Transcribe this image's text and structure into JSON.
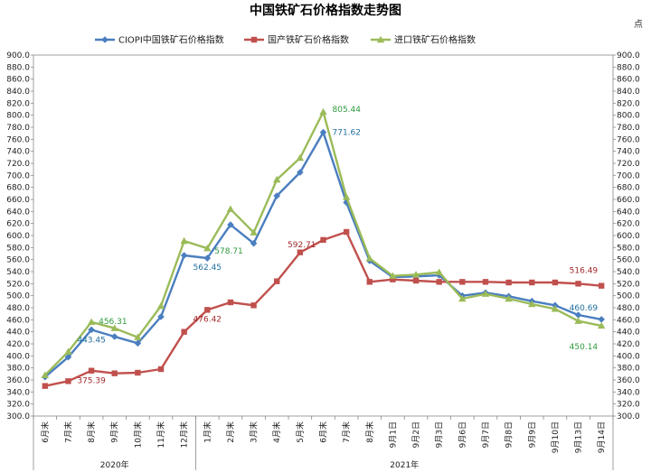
{
  "chart_data": {
    "type": "line",
    "title": "中国铁矿石价格指数走势图",
    "unit": "点",
    "ylim": [
      300,
      900
    ],
    "ystep": 20,
    "categories": [
      "6月末",
      "7月末",
      "8月末",
      "9月末",
      "10月末",
      "11月末",
      "12月末",
      "1月末",
      "2月末",
      "3月末",
      "4月末",
      "5月末",
      "6月末",
      "7月末",
      "8月末",
      "9月1日",
      "9月2日",
      "9月3日",
      "9月6日",
      "9月7日",
      "9月8日",
      "9月9日",
      "9月10日",
      "9月13日",
      "9月14日"
    ],
    "groups": [
      {
        "label": "2020年",
        "start": 0,
        "end": 6
      },
      {
        "label": "2021年",
        "start": 7,
        "end": 24
      }
    ],
    "legend": "top-center",
    "series": [
      {
        "name": "CIOPI中国铁矿石价格指数",
        "color": "#4a7ebf",
        "marker": "diamond",
        "values": [
          365,
          398,
          443.45,
          432,
          421,
          465,
          567,
          562.45,
          618,
          587,
          666,
          705,
          771.62,
          655,
          558,
          531,
          532,
          534,
          500,
          505,
          499,
          491,
          484,
          468,
          460.69
        ]
      },
      {
        "name": "国产铁矿石价格指数",
        "color": "#c0504d",
        "marker": "square",
        "values": [
          350,
          358,
          375.39,
          371,
          372,
          378,
          440,
          476.42,
          489,
          484,
          524,
          572,
          592.71,
          606,
          523,
          527,
          525,
          523,
          523,
          523,
          522,
          522,
          522,
          520,
          516.49
        ]
      },
      {
        "name": "进口铁矿石价格指数",
        "color": "#9bbb59",
        "marker": "triangle",
        "values": [
          368,
          407,
          456.31,
          446,
          431,
          483,
          591,
          578.71,
          644,
          605,
          693,
          729,
          805.44,
          664,
          562,
          533,
          535,
          539,
          495,
          503,
          495,
          486,
          478,
          458,
          450.14
        ]
      }
    ],
    "annotations": [
      {
        "series": 0,
        "index": 2,
        "text": "443.45"
      },
      {
        "series": 0,
        "index": 7,
        "text": "562.45"
      },
      {
        "series": 0,
        "index": 12,
        "text": "771.62"
      },
      {
        "series": 0,
        "index": 24,
        "text": "460.69"
      },
      {
        "series": 1,
        "index": 2,
        "text": "375.39"
      },
      {
        "series": 1,
        "index": 7,
        "text": "476.42"
      },
      {
        "series": 1,
        "index": 12,
        "text": "592.71"
      },
      {
        "series": 1,
        "index": 24,
        "text": "516.49"
      },
      {
        "series": 2,
        "index": 2,
        "text": "456.31"
      },
      {
        "series": 2,
        "index": 7,
        "text": "578.71"
      },
      {
        "series": 2,
        "index": 12,
        "text": "805.44"
      },
      {
        "series": 2,
        "index": 24,
        "text": "450.14"
      }
    ]
  }
}
